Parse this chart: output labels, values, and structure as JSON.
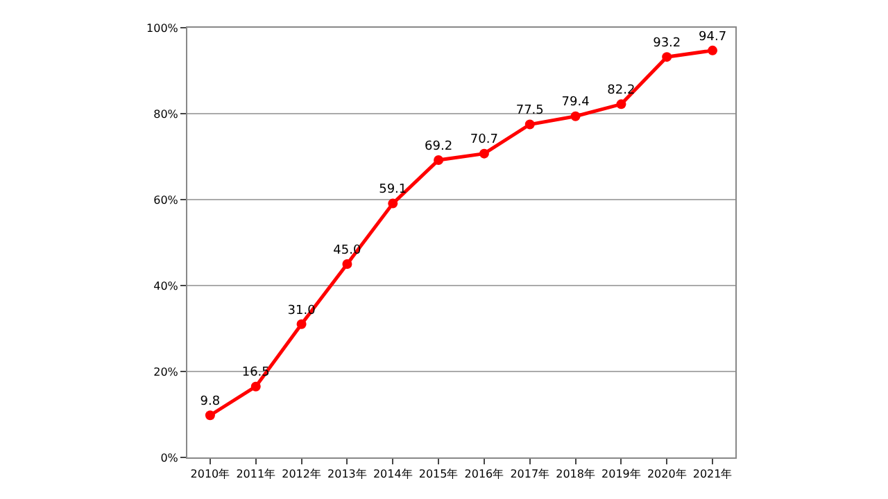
{
  "chart_data": {
    "type": "line",
    "categories": [
      "2010年",
      "2011年",
      "2012年",
      "2013年",
      "2014年",
      "2015年",
      "2016年",
      "2017年",
      "2018年",
      "2019年",
      "2020年",
      "2021年"
    ],
    "series": [
      {
        "color": "#ff0000",
        "values": [
          9.8,
          16.5,
          31.0,
          45.0,
          59.1,
          69.2,
          70.7,
          77.5,
          79.4,
          82.2,
          93.2,
          94.7
        ],
        "value_labels": [
          "9.8",
          "16.5",
          "31.0",
          "45.0",
          "59.1",
          "69.2",
          "70.7",
          "77.5",
          "79.4",
          "82.2",
          "93.2",
          "94.7"
        ]
      }
    ],
    "ylim": [
      0,
      100
    ],
    "yticks": [
      {
        "value": 0,
        "label": "0%"
      },
      {
        "value": 20,
        "label": "20%"
      },
      {
        "value": 40,
        "label": "40%"
      },
      {
        "value": 60,
        "label": "60%"
      },
      {
        "value": 80,
        "label": "80%"
      },
      {
        "value": 100,
        "label": "100%"
      }
    ],
    "grid": "y",
    "legend": false,
    "marker": "circle",
    "line_style": "solid"
  }
}
